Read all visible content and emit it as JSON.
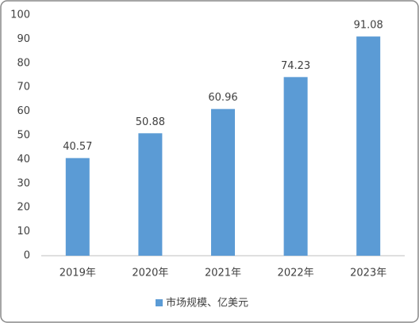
{
  "chart_data": {
    "type": "bar",
    "categories": [
      "2019年",
      "2020年",
      "2021年",
      "2022年",
      "2023年"
    ],
    "series": [
      {
        "name": "市场规模、亿美元",
        "color": "#5b9bd5",
        "values": [
          40.57,
          50.88,
          60.96,
          74.23,
          91.08
        ]
      }
    ],
    "ylim": [
      0,
      100
    ],
    "yticks": [
      0,
      10,
      20,
      30,
      40,
      50,
      60,
      70,
      80,
      90,
      100
    ],
    "grid": false,
    "legend": "bottom",
    "data_labels": true
  }
}
